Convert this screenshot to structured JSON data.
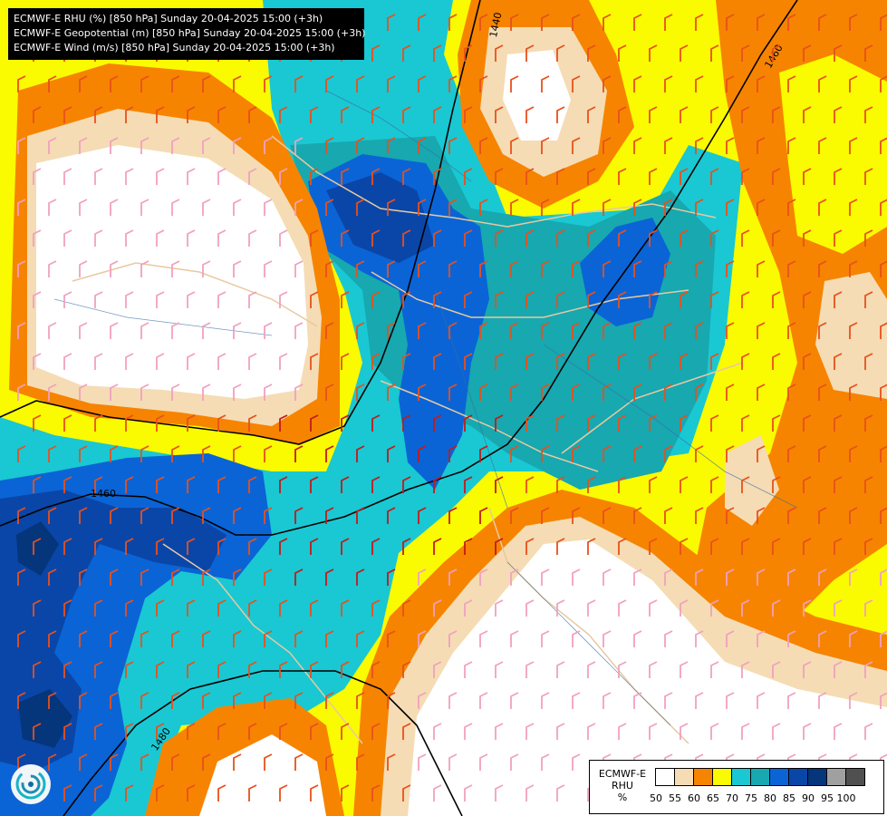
{
  "header": {
    "lines": [
      "ECMWF-E RHU (%) [850 hPa] Sunday 20-04-2025 15:00 (+3h)",
      "ECMWF-E Geopotential (m) [850 hPa] Sunday 20-04-2025 15:00 (+3h)",
      "ECMWF-E Wind (m/s) [850 hPa] Sunday 20-04-2025 15:00 (+3h)"
    ]
  },
  "contours": {
    "labels": [
      "1440",
      "1460",
      "1460",
      "1480"
    ]
  },
  "legend": {
    "title_lines": [
      "ECMWF-E",
      "RHU",
      "%"
    ],
    "ticks": [
      "50",
      "55",
      "60",
      "65",
      "70",
      "75",
      "80",
      "85",
      "90",
      "95",
      "100"
    ],
    "colors": [
      "#ffffff",
      "#f5dcb4",
      "#f68400",
      "#fafa00",
      "#19c8d2",
      "#17a8b0",
      "#0a64d6",
      "#0a46a8",
      "#05357a",
      "#a0a0a0",
      "#505050"
    ]
  },
  "logo": {
    "icon": "ecmwf-swirl-icon"
  }
}
